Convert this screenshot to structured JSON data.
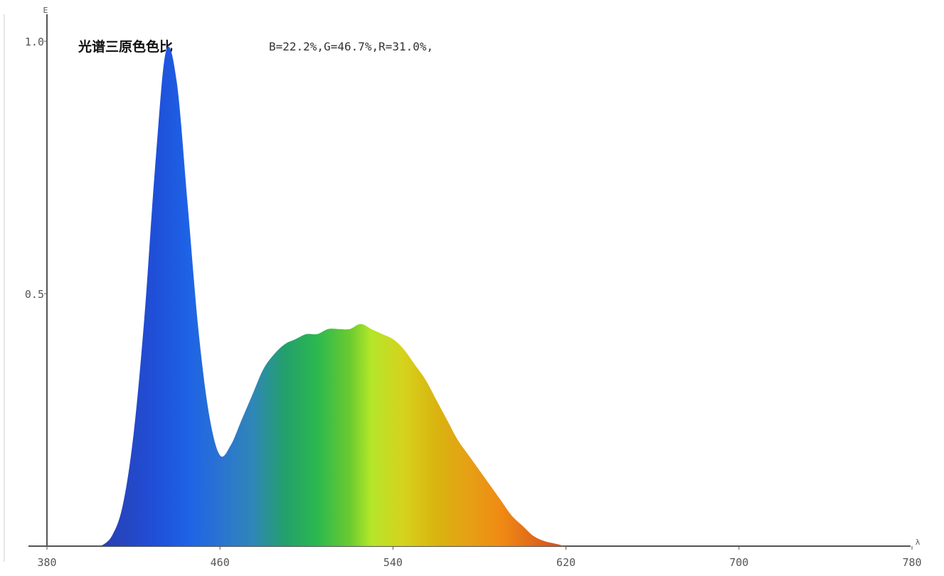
{
  "chart_data": {
    "type": "area",
    "title": "光谱三原色色比",
    "subtitle": "B=22.2%,G=46.7%,R=31.0%,",
    "xlabel": "λ",
    "ylabel": "E",
    "xlim": [
      380,
      780
    ],
    "ylim": [
      0,
      1.0
    ],
    "x_ticks": [
      {
        "value": 380,
        "label": "380"
      },
      {
        "value": 460,
        "label": "460"
      },
      {
        "value": 540,
        "label": "540"
      },
      {
        "value": 620,
        "label": "620"
      },
      {
        "value": 700,
        "label": "700"
      },
      {
        "value": 780,
        "label": "780"
      }
    ],
    "y_ticks": [
      {
        "value": 0.5,
        "label": "0.5"
      },
      {
        "value": 1.0,
        "label": "1.0"
      }
    ],
    "grid": false,
    "fill": "visible-spectrum gradient",
    "x": [
      405,
      410,
      415,
      420,
      425,
      430,
      435,
      440,
      445,
      450,
      455,
      460,
      465,
      470,
      475,
      480,
      485,
      490,
      495,
      500,
      505,
      510,
      515,
      520,
      525,
      530,
      535,
      540,
      545,
      550,
      555,
      560,
      565,
      570,
      575,
      580,
      585,
      590,
      595,
      600,
      605,
      610,
      615,
      620,
      625,
      630,
      635,
      640,
      645,
      650,
      655,
      660,
      665,
      670,
      675,
      680,
      685,
      690,
      695,
      700,
      705,
      710,
      715,
      720
    ],
    "y": [
      0.0,
      0.02,
      0.08,
      0.22,
      0.45,
      0.75,
      0.98,
      0.92,
      0.68,
      0.43,
      0.26,
      0.18,
      0.2,
      0.25,
      0.3,
      0.35,
      0.38,
      0.4,
      0.41,
      0.42,
      0.42,
      0.43,
      0.43,
      0.43,
      0.44,
      0.43,
      0.42,
      0.41,
      0.39,
      0.36,
      0.33,
      0.29,
      0.25,
      0.21,
      0.18,
      0.15,
      0.12,
      0.09,
      0.06,
      0.04,
      0.02,
      0.01,
      0.005,
      0.0,
      0.0,
      0.0,
      0.0,
      0.0,
      0.0,
      0.0,
      0.0,
      0.0,
      0.0,
      0.0,
      0.0,
      0.0,
      0.0,
      0.0,
      0.0,
      0.0,
      0.0,
      0.0,
      0.0,
      0.0
    ]
  }
}
